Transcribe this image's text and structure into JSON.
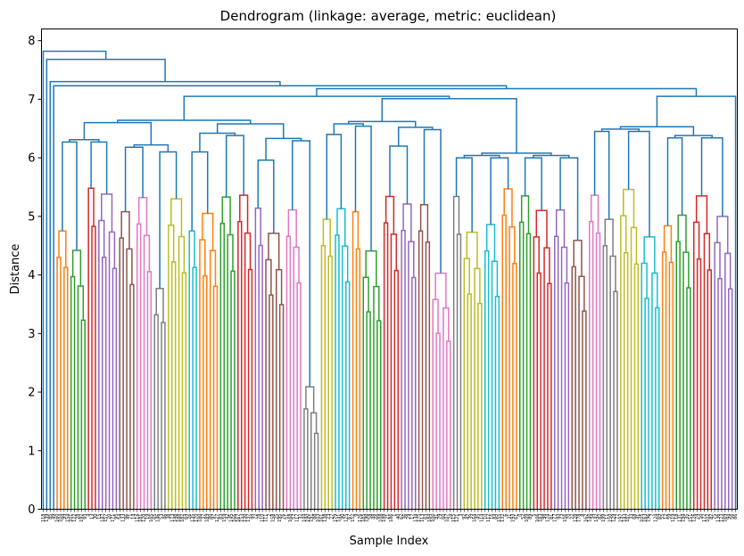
{
  "chart_data": {
    "type": "dendrogram",
    "title": "Dendrogram (linkage: average, metric: euclidean)",
    "xlabel": "Sample Index",
    "ylabel": "Distance",
    "ylim": [
      0,
      8.2
    ],
    "yticks": [
      0,
      1,
      2,
      3,
      4,
      5,
      6,
      7,
      8
    ],
    "leaf_count": 200,
    "root_height": 7.82,
    "default_link_color": "#1f77b4",
    "cluster_palette": [
      "#ff7f0e",
      "#2ca02c",
      "#d62728",
      "#9467bd",
      "#8c564b",
      "#e377c2",
      "#7f7f7f",
      "#bcbd22",
      "#17becf"
    ],
    "top_merges": [
      {
        "height": 7.82,
        "left_leaves": 1,
        "right_leaves": 199
      },
      {
        "height": 7.68,
        "left_leaves": 1,
        "right_leaves": 198
      },
      {
        "height": 7.3,
        "left_leaves": 1,
        "right_leaves": 197
      },
      {
        "height": 7.23,
        "left_leaves": 1,
        "right_leaves": 196
      },
      {
        "height": 7.18,
        "left_leaves": 153,
        "right_leaves": 43
      },
      {
        "height": 7.05,
        "left_leaves": 42,
        "right_leaves": 1
      }
    ],
    "colored_cluster_heights": [
      4.75,
      4.42,
      5.48,
      5.38,
      5.08,
      5.32,
      3.77,
      5.3,
      4.75,
      5.05,
      5.33,
      5.36,
      5.14,
      4.71,
      5.11,
      2.09,
      4.95,
      5.13,
      5.08,
      4.41,
      5.34,
      5.21,
      5.2,
      4.03,
      5.34,
      4.73,
      4.86,
      5.47,
      5.35,
      5.1,
      5.11,
      4.59,
      5.36,
      4.95,
      5.46,
      4.65,
      4.84,
      5.02,
      5.35,
      5.0,
      4.95,
      5.45,
      4.27,
      5.27,
      4.5,
      3.9,
      4.0,
      2.52,
      5.29,
      5.3,
      5.4,
      5.07,
      4.71,
      5.43,
      4.55,
      5.0,
      5.24,
      5.01,
      4.12,
      4.86,
      5.26,
      4.6,
      4.19,
      5.0
    ],
    "leaf_labels": [
      "118",
      "139",
      "85",
      "49",
      "160",
      "104",
      "99",
      "154",
      "101",
      "122",
      "28",
      "192",
      "93",
      "4",
      "13",
      "30",
      "15",
      "147",
      "157",
      "20",
      "171",
      "95",
      "54",
      "133",
      "96",
      "71",
      "14",
      "116",
      "181",
      "120",
      "19",
      "165",
      "65",
      "146",
      "53",
      "46",
      "38",
      "173",
      "148",
      "188",
      "182",
      "64",
      "26",
      "135",
      "170",
      "180",
      "37",
      "189",
      "80",
      "97",
      "127",
      "83",
      "159",
      "42",
      "145",
      "166",
      "167",
      "153",
      "130",
      "137",
      "44",
      "72",
      "78",
      "110",
      "111",
      "2",
      "158",
      "25",
      "195",
      "76",
      "51",
      "168",
      "57",
      "117",
      "32",
      "144",
      "190",
      "191",
      "88",
      "103",
      "161",
      "138",
      "23",
      "27",
      "179",
      "141",
      "90",
      "125",
      "67",
      "152",
      "9",
      "176",
      "185",
      "198",
      "58",
      "48",
      "66",
      "108",
      "149",
      "21",
      "186",
      "1",
      "40",
      "62",
      "36",
      "29",
      "17",
      "134",
      "175",
      "113",
      "63",
      "184",
      "100",
      "91",
      "79",
      "60",
      "107",
      "24",
      "115",
      "121",
      "3",
      "92",
      "47",
      "39",
      "164",
      "45",
      "114",
      "10",
      "112",
      "16",
      "84",
      "155",
      "132",
      "6",
      "31",
      "193",
      "61",
      "0",
      "52",
      "109",
      "89",
      "5",
      "106",
      "183",
      "98",
      "174",
      "81",
      "177",
      "43",
      "73",
      "156",
      "70",
      "22",
      "128",
      "178",
      "8",
      "162",
      "140",
      "34",
      "142",
      "82",
      "199",
      "11",
      "150",
      "129",
      "77",
      "197",
      "143",
      "187",
      "33",
      "68",
      "41",
      "105",
      "163",
      "196",
      "7",
      "124",
      "69",
      "55",
      "12",
      "59",
      "119",
      "18",
      "131",
      "194",
      "35",
      "151",
      "126",
      "74",
      "50",
      "172",
      "102",
      "87",
      "75",
      "136",
      "123",
      "169",
      "94",
      "56",
      "86"
    ]
  }
}
